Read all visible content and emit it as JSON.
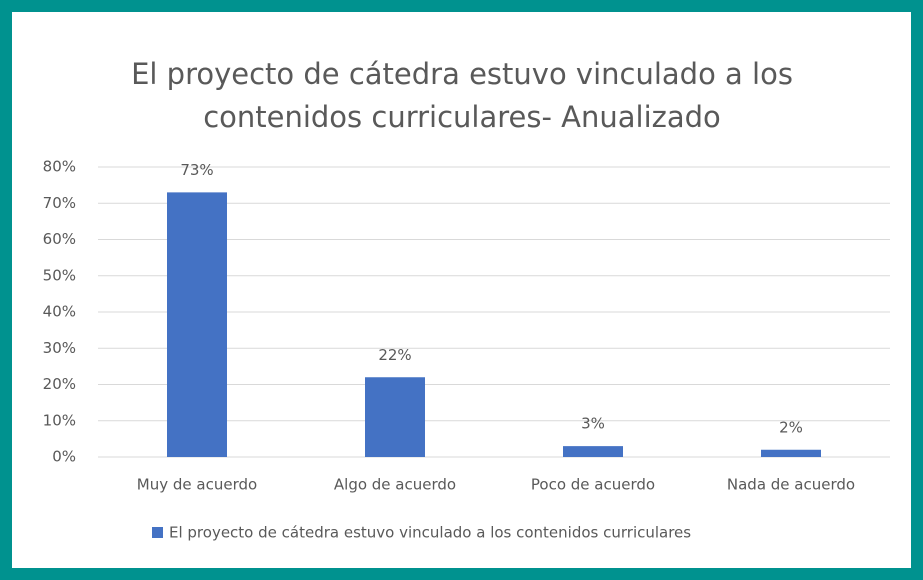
{
  "chart_data": {
    "type": "bar",
    "title": [
      "El proyecto de cátedra estuvo vinculado a los",
      "contenidos curriculares- Anualizado"
    ],
    "categories": [
      "Muy de acuerdo",
      "Algo de acuerdo",
      "Poco de acuerdo",
      "Nada de acuerdo"
    ],
    "series": [
      {
        "name": "El proyecto de cátedra estuvo vinculado a los contenidos curriculares",
        "color": "#4472c4",
        "values": [
          73,
          22,
          3,
          2
        ],
        "value_labels": [
          "73%",
          "22%",
          "3%",
          "2%"
        ]
      }
    ],
    "ylim": [
      0,
      80
    ],
    "yticks": [
      {
        "value": 0,
        "label": "0%"
      },
      {
        "value": 10,
        "label": "10%"
      },
      {
        "value": 20,
        "label": "20%"
      },
      {
        "value": 30,
        "label": "30%"
      },
      {
        "value": 40,
        "label": "40%"
      },
      {
        "value": 50,
        "label": "50%"
      },
      {
        "value": 60,
        "label": "60%"
      },
      {
        "value": 70,
        "label": "70%"
      },
      {
        "value": 80,
        "label": "80%"
      }
    ],
    "grid": true,
    "legend": "bottom"
  }
}
